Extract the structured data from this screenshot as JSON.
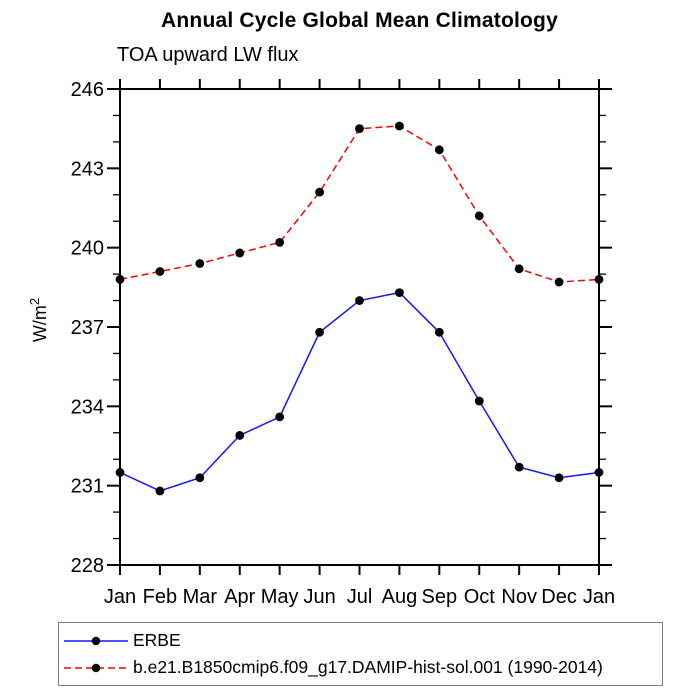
{
  "header": {
    "title": "Annual Cycle Global Mean Climatology",
    "subtitle": "TOA upward LW flux"
  },
  "chart_data": {
    "type": "line",
    "title": "Annual Cycle Global Mean Climatology",
    "subtitle": "TOA upward LW flux",
    "xlabel": "",
    "ylabel": "W/m²",
    "categories": [
      "Jan",
      "Feb",
      "Mar",
      "Apr",
      "May",
      "Jun",
      "Jul",
      "Aug",
      "Sep",
      "Oct",
      "Nov",
      "Dec",
      "Jan"
    ],
    "ylim": [
      228,
      246
    ],
    "y_ticks": [
      228,
      231,
      234,
      237,
      240,
      243,
      246
    ],
    "y_minor_step": 1,
    "grid": false,
    "legend_position": "bottom-left-boxed",
    "axis_color": "#000000",
    "series": [
      {
        "name": "ERBE",
        "color": "#1414ff",
        "line_style": "solid",
        "marker": "circle",
        "marker_color": "#000000",
        "values": [
          231.5,
          230.8,
          231.3,
          232.9,
          233.6,
          236.8,
          238.0,
          238.3,
          236.8,
          234.2,
          231.7,
          231.3,
          231.5
        ]
      },
      {
        "name": "b.e21.B1850cmip6.f09_g17.DAMIP-hist-sol.001 (1990-2014)",
        "color": "#ff0000",
        "line_style": "dashed",
        "marker": "circle",
        "marker_color": "#000000",
        "values": [
          238.8,
          239.1,
          239.4,
          239.8,
          240.2,
          242.1,
          244.5,
          244.6,
          243.7,
          241.2,
          239.2,
          238.7,
          238.8
        ]
      }
    ]
  },
  "legend": {
    "entries": [
      {
        "label": "ERBE"
      },
      {
        "label": "b.e21.B1850cmip6.f09_g17.DAMIP-hist-sol.001 (1990-2014)"
      }
    ]
  }
}
